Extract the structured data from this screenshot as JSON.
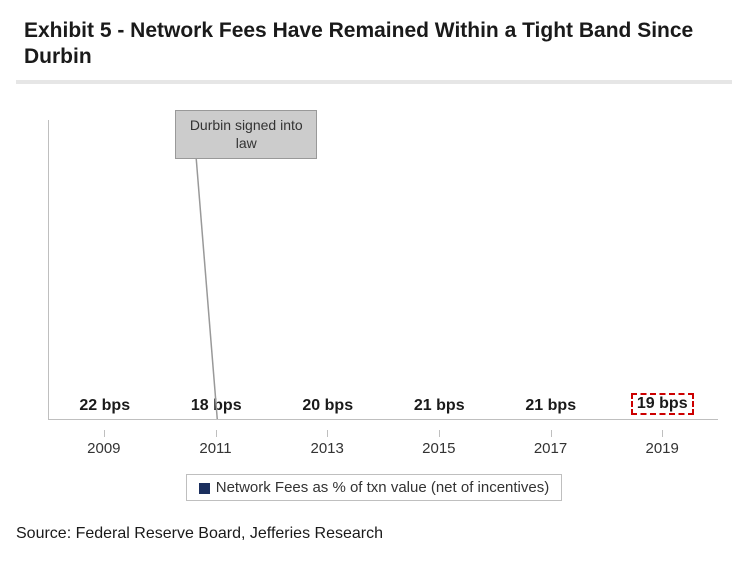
{
  "title": "Exhibit 5 - Network Fees Have Remained Within a Tight Band Since Durbin",
  "source": "Source: Federal Reserve Board, Jefferies Research",
  "chart": {
    "type": "bar",
    "categories": [
      "2009",
      "2011",
      "2013",
      "2015",
      "2017",
      "2019"
    ],
    "values": [
      22,
      18,
      20,
      21,
      21,
      19
    ],
    "value_unit": "bps",
    "bar_color": "#1b2f5e",
    "ylim_max": 30,
    "bar_width_pct": 62,
    "label_fontsize": 16,
    "label_fontweight": 700,
    "xaxis_fontsize": 15,
    "axis_color": "#bfbfbf",
    "background_color": "#ffffff",
    "highlight_index": 5,
    "highlight_border_color": "#cc0000",
    "highlight_border_style": "dashed"
  },
  "callout": {
    "text": "Durbin signed into law",
    "target_index": 1,
    "bg_color": "#cccccc",
    "border_color": "#999999",
    "fontsize": 14
  },
  "legend": {
    "label": "Network Fees as % of txn value (net of incentives)",
    "swatch_color": "#1b2f5e",
    "border_color": "#bfbfbf",
    "fontsize": 15
  },
  "title_style": {
    "fontsize": 21,
    "fontweight": 700,
    "color": "#1a1a1a",
    "rule_color": "#e6e6e6"
  }
}
